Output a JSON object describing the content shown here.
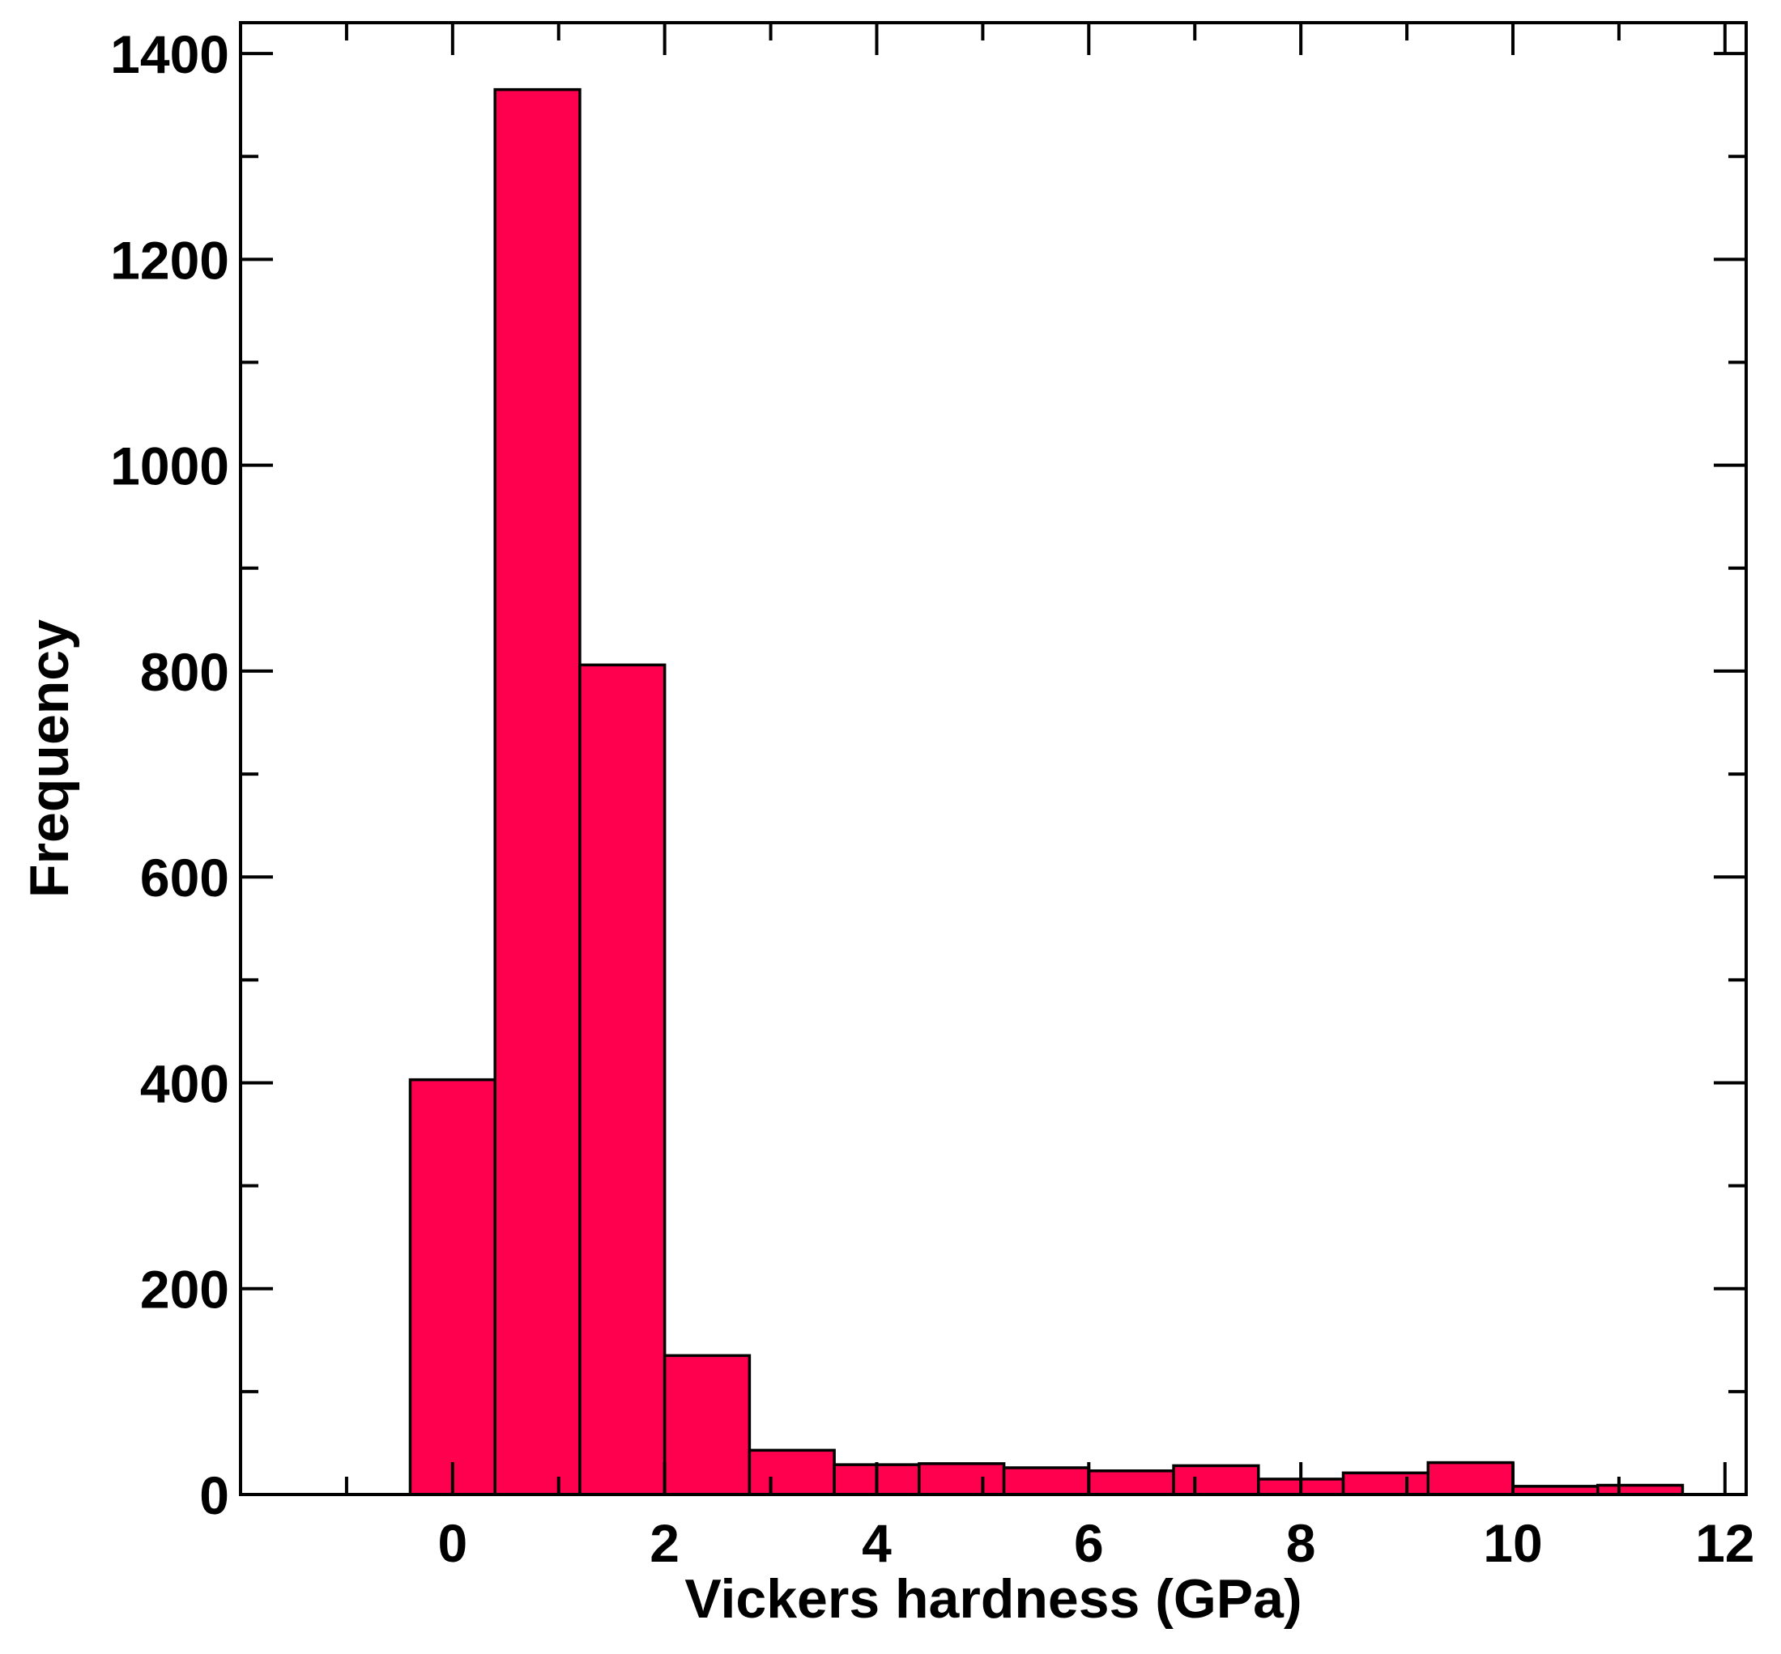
{
  "chart_data": {
    "type": "bar",
    "subtype": "histogram",
    "title": "",
    "xlabel": "Vickers hardness (GPa)",
    "ylabel": "Frequency",
    "xlim": [
      -2,
      12.2
    ],
    "ylim": [
      0,
      1430
    ],
    "xticks": [
      0,
      2,
      4,
      6,
      8,
      10,
      12
    ],
    "yticks": [
      0,
      200,
      400,
      600,
      800,
      1000,
      1200,
      1400
    ],
    "bin_width": 0.8,
    "bin_edges": [
      -0.4,
      0.4,
      1.2,
      2.0,
      2.8,
      3.6,
      4.4,
      5.2,
      6.0,
      6.8,
      7.6,
      8.4,
      9.2,
      10.0,
      10.8,
      11.6
    ],
    "values": [
      403,
      1365,
      806,
      135,
      43,
      29,
      30,
      26,
      23,
      28,
      15,
      21,
      31,
      8,
      9
    ],
    "bar_color": "#ff004f",
    "edge_color": "#000000",
    "grid": false,
    "legend": "none"
  }
}
